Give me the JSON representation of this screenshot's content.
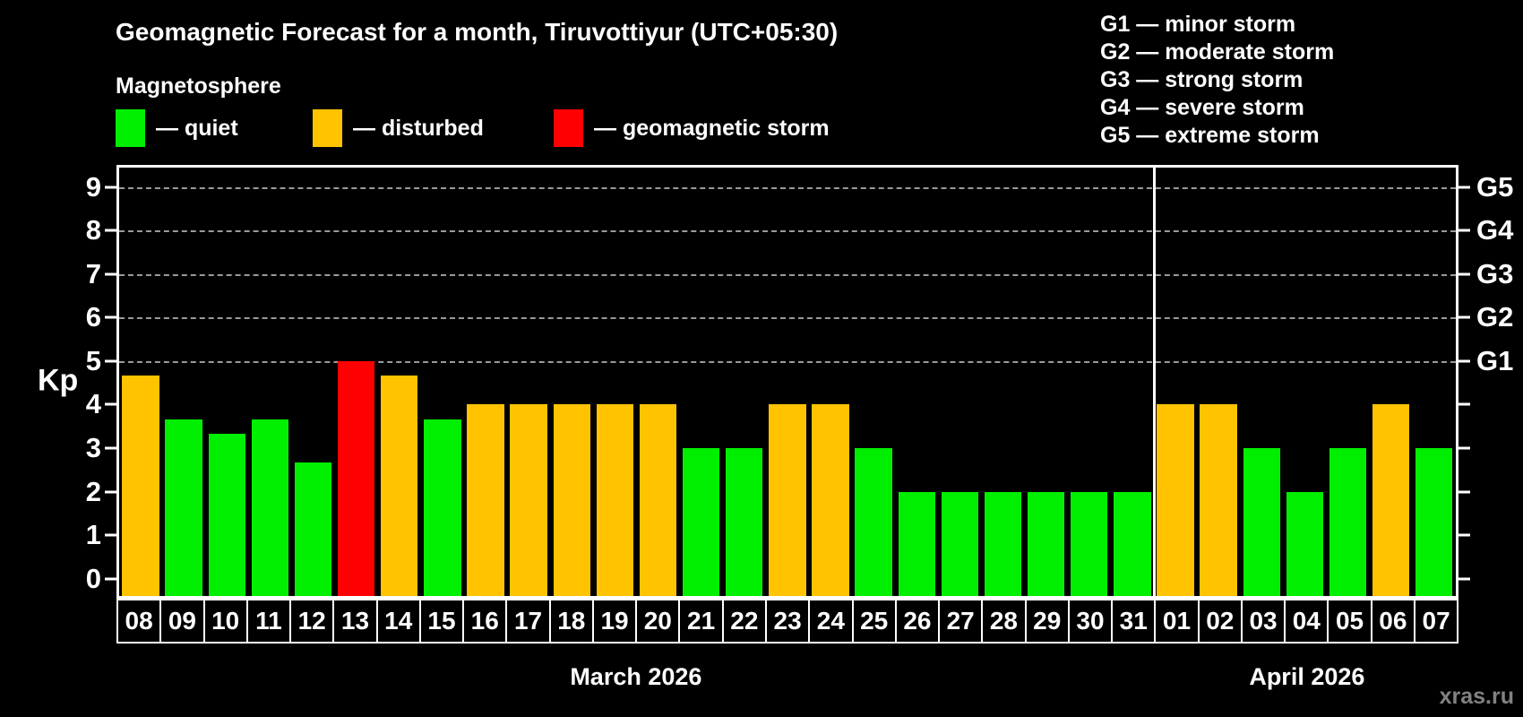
{
  "header": {
    "title": "Geomagnetic Forecast for a month, Tiruvottiyur (UTC+05:30)",
    "subtitle": "Magnetosphere"
  },
  "legend": {
    "items": [
      {
        "key": "quiet",
        "label": "— quiet",
        "color": "#00ef00"
      },
      {
        "key": "disturbed",
        "label": "— disturbed",
        "color": "#ffc300"
      },
      {
        "key": "storm",
        "label": "— geomagnetic storm",
        "color": "#ff0000"
      }
    ]
  },
  "g_scale_legend": {
    "items": [
      "G1 — minor storm",
      "G2 — moderate storm",
      "G3 — strong storm",
      "G4 — severe storm",
      "G5 — extreme storm"
    ]
  },
  "watermark": "xras.ru",
  "chart_data": {
    "type": "bar",
    "title": "Geomagnetic Forecast for a month, Tiruvottiyur (UTC+05:30)",
    "ylabel": "Kp",
    "ylim": [
      -0.4,
      9.45
    ],
    "yticks": [
      0,
      1,
      2,
      3,
      4,
      5,
      6,
      7,
      8,
      9
    ],
    "gridlines_at": [
      5,
      6,
      7,
      8,
      9
    ],
    "grid_color": "#9a9a9a",
    "legend_position": "top-left",
    "right_axis": [
      {
        "value": 5,
        "label": "G1"
      },
      {
        "value": 6,
        "label": "G2"
      },
      {
        "value": 7,
        "label": "G3"
      },
      {
        "value": 8,
        "label": "G4"
      },
      {
        "value": 9,
        "label": "G5"
      }
    ],
    "months": [
      {
        "label": "March 2026",
        "start_index": 0,
        "count": 24
      },
      {
        "label": "April 2026",
        "start_index": 24,
        "count": 7
      }
    ],
    "bars": [
      {
        "day": "08",
        "kp": 4.67,
        "status": "disturbed"
      },
      {
        "day": "09",
        "kp": 3.67,
        "status": "quiet"
      },
      {
        "day": "10",
        "kp": 3.33,
        "status": "quiet"
      },
      {
        "day": "11",
        "kp": 3.67,
        "status": "quiet"
      },
      {
        "day": "12",
        "kp": 2.67,
        "status": "quiet"
      },
      {
        "day": "13",
        "kp": 5.0,
        "status": "storm"
      },
      {
        "day": "14",
        "kp": 4.67,
        "status": "disturbed"
      },
      {
        "day": "15",
        "kp": 3.67,
        "status": "quiet"
      },
      {
        "day": "16",
        "kp": 4.0,
        "status": "disturbed"
      },
      {
        "day": "17",
        "kp": 4.0,
        "status": "disturbed"
      },
      {
        "day": "18",
        "kp": 4.0,
        "status": "disturbed"
      },
      {
        "day": "19",
        "kp": 4.0,
        "status": "disturbed"
      },
      {
        "day": "20",
        "kp": 4.0,
        "status": "disturbed"
      },
      {
        "day": "21",
        "kp": 3.0,
        "status": "quiet"
      },
      {
        "day": "22",
        "kp": 3.0,
        "status": "quiet"
      },
      {
        "day": "23",
        "kp": 4.0,
        "status": "disturbed"
      },
      {
        "day": "24",
        "kp": 4.0,
        "status": "disturbed"
      },
      {
        "day": "25",
        "kp": 3.0,
        "status": "quiet"
      },
      {
        "day": "26",
        "kp": 2.0,
        "status": "quiet"
      },
      {
        "day": "27",
        "kp": 2.0,
        "status": "quiet"
      },
      {
        "day": "28",
        "kp": 2.0,
        "status": "quiet"
      },
      {
        "day": "29",
        "kp": 2.0,
        "status": "quiet"
      },
      {
        "day": "30",
        "kp": 2.0,
        "status": "quiet"
      },
      {
        "day": "31",
        "kp": 2.0,
        "status": "quiet"
      },
      {
        "day": "01",
        "kp": 4.0,
        "status": "disturbed"
      },
      {
        "day": "02",
        "kp": 4.0,
        "status": "disturbed"
      },
      {
        "day": "03",
        "kp": 3.0,
        "status": "quiet"
      },
      {
        "day": "04",
        "kp": 2.0,
        "status": "quiet"
      },
      {
        "day": "05",
        "kp": 3.0,
        "status": "quiet"
      },
      {
        "day": "06",
        "kp": 4.0,
        "status": "disturbed"
      },
      {
        "day": "07",
        "kp": 3.0,
        "status": "quiet"
      }
    ]
  }
}
